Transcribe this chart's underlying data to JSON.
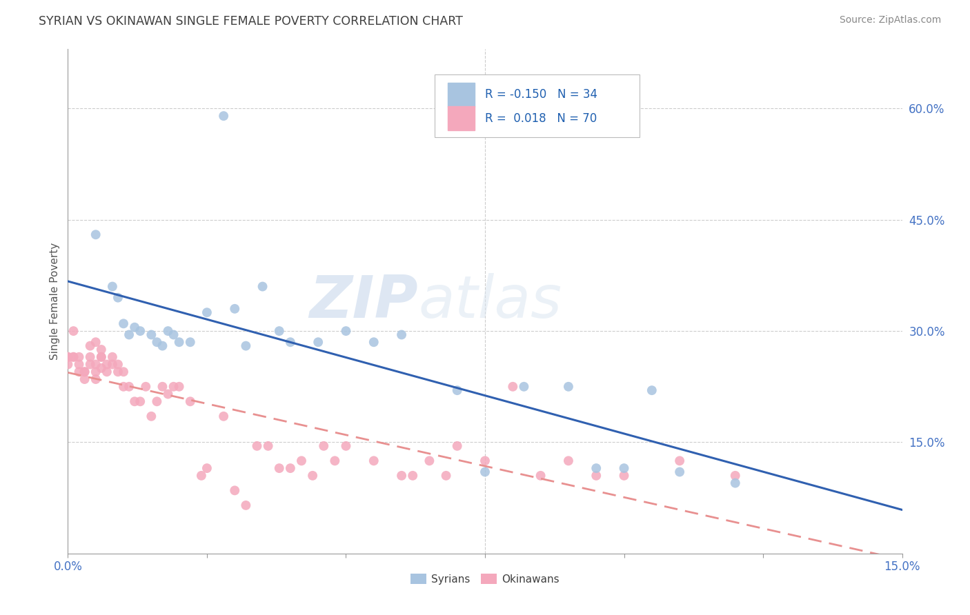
{
  "title": "SYRIAN VS OKINAWAN SINGLE FEMALE POVERTY CORRELATION CHART",
  "source": "Source: ZipAtlas.com",
  "ylabel": "Single Female Poverty",
  "watermark": "ZIPatlas",
  "xlim": [
    0.0,
    0.15
  ],
  "ylim": [
    0.0,
    0.68
  ],
  "xtick_positions": [
    0.0,
    0.025,
    0.05,
    0.075,
    0.1,
    0.125,
    0.15
  ],
  "xtick_labels": [
    "0.0%",
    "",
    "",
    "",
    "",
    "",
    "15.0%"
  ],
  "yticks_right": [
    0.15,
    0.3,
    0.45,
    0.6
  ],
  "ytick_right_labels": [
    "15.0%",
    "30.0%",
    "45.0%",
    "60.0%"
  ],
  "syrian_color": "#a8c4e0",
  "okinawan_color": "#f4a8bc",
  "syrian_line_color": "#3060b0",
  "okinawan_line_color": "#e89090",
  "legend_R_syrian": "-0.150",
  "legend_N_syrian": "34",
  "legend_R_okinawan": "0.018",
  "legend_N_okinawan": "70",
  "syrians_x": [
    0.028,
    0.005,
    0.008,
    0.009,
    0.01,
    0.011,
    0.012,
    0.013,
    0.015,
    0.016,
    0.017,
    0.018,
    0.019,
    0.02,
    0.022,
    0.025,
    0.03,
    0.032,
    0.035,
    0.038,
    0.04,
    0.045,
    0.05,
    0.055,
    0.06,
    0.07,
    0.075,
    0.082,
    0.09,
    0.095,
    0.1,
    0.105,
    0.11,
    0.12
  ],
  "syrians_y": [
    0.59,
    0.43,
    0.36,
    0.345,
    0.31,
    0.295,
    0.305,
    0.3,
    0.295,
    0.285,
    0.28,
    0.3,
    0.295,
    0.285,
    0.285,
    0.325,
    0.33,
    0.28,
    0.36,
    0.3,
    0.285,
    0.285,
    0.3,
    0.285,
    0.295,
    0.22,
    0.11,
    0.225,
    0.225,
    0.115,
    0.115,
    0.22,
    0.11,
    0.095
  ],
  "okinawans_x": [
    0.0,
    0.0,
    0.0,
    0.001,
    0.001,
    0.001,
    0.002,
    0.002,
    0.002,
    0.003,
    0.003,
    0.003,
    0.004,
    0.004,
    0.004,
    0.005,
    0.005,
    0.005,
    0.005,
    0.006,
    0.006,
    0.006,
    0.006,
    0.007,
    0.007,
    0.008,
    0.008,
    0.009,
    0.009,
    0.01,
    0.01,
    0.011,
    0.012,
    0.013,
    0.014,
    0.015,
    0.016,
    0.017,
    0.018,
    0.019,
    0.02,
    0.022,
    0.024,
    0.025,
    0.028,
    0.03,
    0.032,
    0.034,
    0.036,
    0.038,
    0.04,
    0.042,
    0.044,
    0.046,
    0.048,
    0.05,
    0.055,
    0.06,
    0.062,
    0.065,
    0.068,
    0.07,
    0.075,
    0.08,
    0.085,
    0.09,
    0.095,
    0.1,
    0.11,
    0.12
  ],
  "okinawans_y": [
    0.255,
    0.265,
    0.265,
    0.3,
    0.265,
    0.265,
    0.265,
    0.255,
    0.245,
    0.245,
    0.245,
    0.235,
    0.28,
    0.265,
    0.255,
    0.235,
    0.245,
    0.285,
    0.255,
    0.265,
    0.265,
    0.275,
    0.25,
    0.255,
    0.245,
    0.265,
    0.255,
    0.255,
    0.245,
    0.225,
    0.245,
    0.225,
    0.205,
    0.205,
    0.225,
    0.185,
    0.205,
    0.225,
    0.215,
    0.225,
    0.225,
    0.205,
    0.105,
    0.115,
    0.185,
    0.085,
    0.065,
    0.145,
    0.145,
    0.115,
    0.115,
    0.125,
    0.105,
    0.145,
    0.125,
    0.145,
    0.125,
    0.105,
    0.105,
    0.125,
    0.105,
    0.145,
    0.125,
    0.225,
    0.105,
    0.125,
    0.105,
    0.105,
    0.125,
    0.105
  ],
  "grid_color": "#cccccc",
  "spine_color": "#999999",
  "title_color": "#404040",
  "axis_label_color": "#4472c4",
  "ylabel_color": "#555555"
}
